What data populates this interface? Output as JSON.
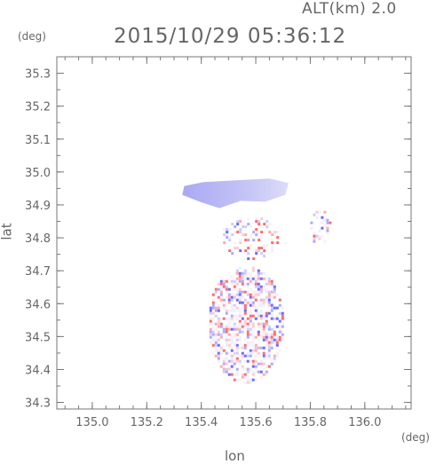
{
  "header": {
    "altitude_label": "ALT(km)  2.0",
    "timestamp": "2015/10/29 05:36:12"
  },
  "chart_data": {
    "type": "heatmap",
    "title": "2015/10/29 05:36:12",
    "xlabel": "lon",
    "ylabel": "lat",
    "x_unit": "(deg)",
    "y_unit": "(deg)",
    "xlim": [
      134.87,
      136.17
    ],
    "ylim": [
      34.28,
      35.35
    ],
    "x_ticks": [
      "135.0",
      "135.2",
      "135.4",
      "135.6",
      "135.8",
      "136.0"
    ],
    "x_tick_values": [
      135.0,
      135.2,
      135.4,
      135.6,
      135.8,
      136.0
    ],
    "y_ticks": [
      "34.3",
      "34.4",
      "34.5",
      "34.6",
      "34.7",
      "34.8",
      "34.9",
      "35.0",
      "35.1",
      "35.2",
      "35.3"
    ],
    "y_tick_values": [
      34.3,
      34.4,
      34.5,
      34.6,
      34.7,
      34.8,
      34.9,
      35.0,
      35.1,
      35.2,
      35.3
    ],
    "colors": {
      "negative": "#6666ff",
      "positive": "#ff5555",
      "neutral": "#e6e6ff"
    },
    "regions": [
      {
        "name": "north-blue-band",
        "lon": [
          135.33,
          135.72
        ],
        "lat": [
          34.89,
          34.98
        ],
        "polarity": "negative"
      },
      {
        "name": "central-scatter",
        "lon": [
          135.47,
          135.68
        ],
        "lat": [
          34.74,
          34.87
        ],
        "polarity": "mixed"
      },
      {
        "name": "east-scatter",
        "lon": [
          135.79,
          135.87
        ],
        "lat": [
          34.78,
          34.89
        ],
        "polarity": "mixed"
      },
      {
        "name": "southern-body",
        "lon": [
          135.42,
          135.7
        ],
        "lat": [
          34.36,
          34.72
        ],
        "polarity": "mixed"
      }
    ]
  }
}
